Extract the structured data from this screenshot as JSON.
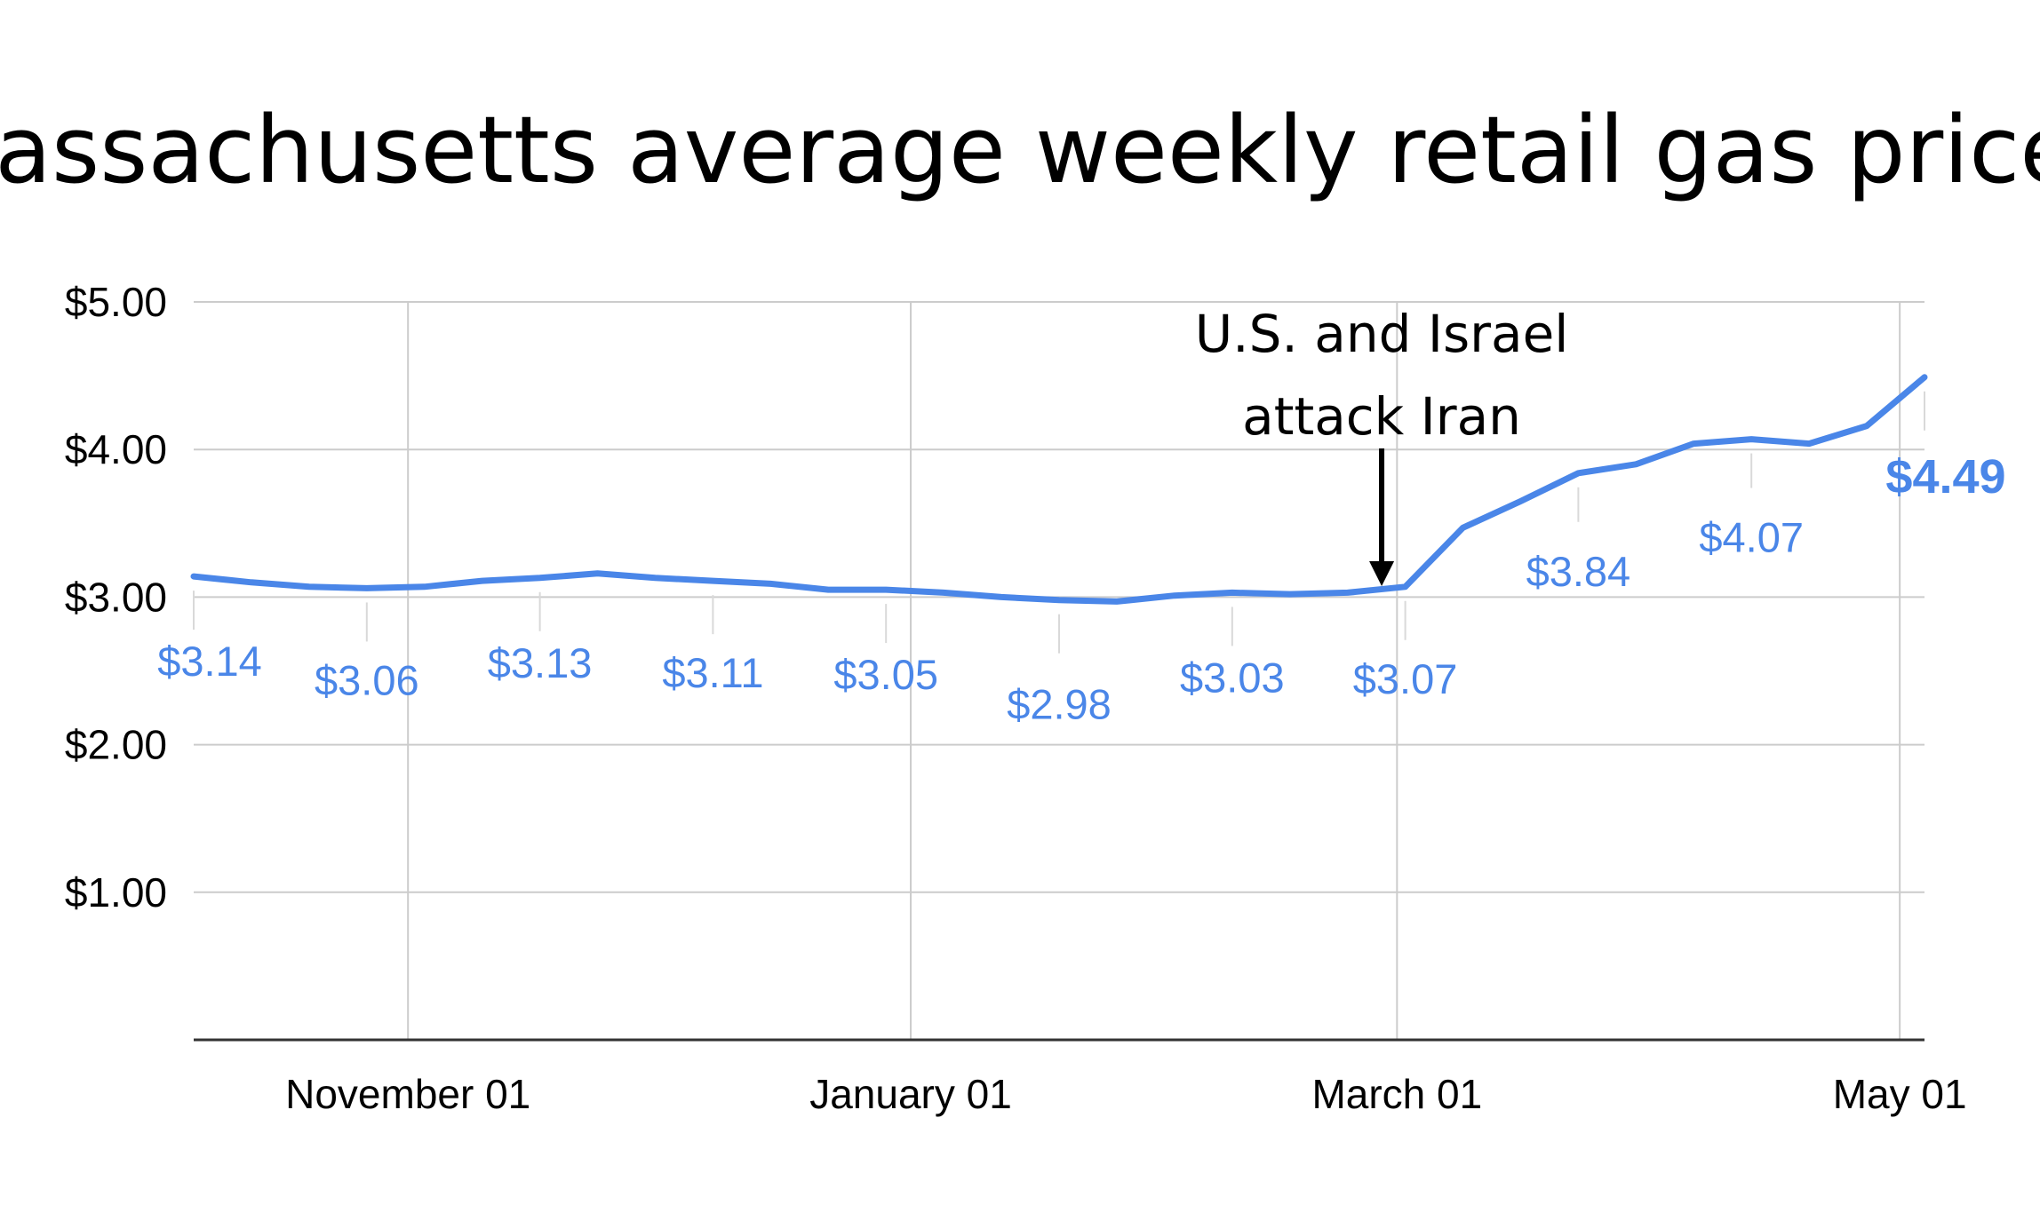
{
  "chart_data": {
    "type": "line",
    "title": "Massachusetts average weekly retail gas prices",
    "xlabel": "",
    "ylabel": "",
    "ylim": [
      0,
      5
    ],
    "y_ticks": [
      "$5.00",
      "$4.00",
      "$3.00",
      "$2.00",
      "$1.00"
    ],
    "x_ticks": [
      "November 01",
      "January 01",
      "March 01",
      "May 01"
    ],
    "x_range": [
      "2025-10-06",
      "2026-05-04"
    ],
    "x_tick_dates": [
      "2025-11-01",
      "2026-01-01",
      "2026-03-01",
      "2026-05-01"
    ],
    "grid": true,
    "series": [
      {
        "color": "#4a86e8",
        "points": [
          {
            "x": "2025-10-06",
            "y": 3.14
          },
          {
            "x": "2025-10-13",
            "y": 3.1
          },
          {
            "x": "2025-10-20",
            "y": 3.07
          },
          {
            "x": "2025-10-27",
            "y": 3.06
          },
          {
            "x": "2025-11-03",
            "y": 3.07
          },
          {
            "x": "2025-11-10",
            "y": 3.11
          },
          {
            "x": "2025-11-17",
            "y": 3.13
          },
          {
            "x": "2025-11-24",
            "y": 3.16
          },
          {
            "x": "2025-12-01",
            "y": 3.13
          },
          {
            "x": "2025-12-08",
            "y": 3.11
          },
          {
            "x": "2025-12-15",
            "y": 3.09
          },
          {
            "x": "2025-12-22",
            "y": 3.05
          },
          {
            "x": "2025-12-29",
            "y": 3.05
          },
          {
            "x": "2026-01-05",
            "y": 3.03
          },
          {
            "x": "2026-01-12",
            "y": 3.0
          },
          {
            "x": "2026-01-19",
            "y": 2.98
          },
          {
            "x": "2026-01-26",
            "y": 2.97
          },
          {
            "x": "2026-02-02",
            "y": 3.01
          },
          {
            "x": "2026-02-09",
            "y": 3.03
          },
          {
            "x": "2026-02-16",
            "y": 3.02
          },
          {
            "x": "2026-02-23",
            "y": 3.03
          },
          {
            "x": "2026-03-02",
            "y": 3.07
          },
          {
            "x": "2026-03-09",
            "y": 3.47
          },
          {
            "x": "2026-03-16",
            "y": 3.65
          },
          {
            "x": "2026-03-23",
            "y": 3.84
          },
          {
            "x": "2026-03-30",
            "y": 3.9
          },
          {
            "x": "2026-04-06",
            "y": 4.04
          },
          {
            "x": "2026-04-13",
            "y": 4.07
          },
          {
            "x": "2026-04-20",
            "y": 4.04
          },
          {
            "x": "2026-04-27",
            "y": 4.16
          },
          {
            "x": "2026-05-04",
            "y": 4.49
          }
        ]
      }
    ],
    "data_labels": [
      {
        "x": "2025-10-06",
        "text": "$3.14"
      },
      {
        "x": "2025-10-27",
        "text": "$3.06"
      },
      {
        "x": "2025-11-17",
        "text": "$3.13"
      },
      {
        "x": "2025-12-08",
        "text": "$3.11"
      },
      {
        "x": "2025-12-29",
        "text": "$3.05"
      },
      {
        "x": "2026-01-19",
        "text": "$2.98"
      },
      {
        "x": "2026-02-09",
        "text": "$3.03"
      },
      {
        "x": "2026-03-02",
        "text": "$3.07"
      },
      {
        "x": "2026-03-23",
        "text": "$3.84"
      },
      {
        "x": "2026-04-13",
        "text": "$4.07"
      },
      {
        "x": "2026-05-04",
        "text": "$4.49",
        "emphasis": true
      }
    ],
    "annotation": {
      "lines": [
        "U.S. and Israel",
        "attack Iran"
      ],
      "x": "2026-02-28",
      "arrow": true
    }
  }
}
